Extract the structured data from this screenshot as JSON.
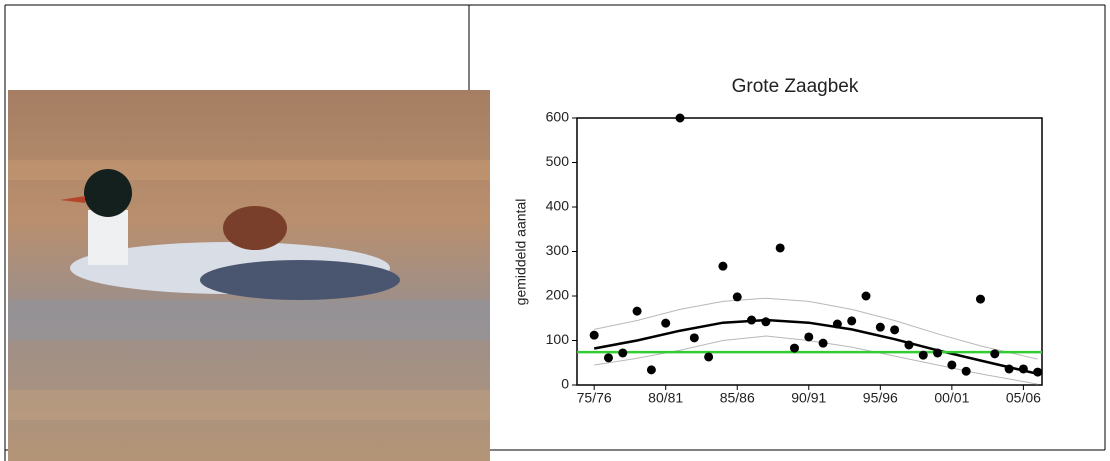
{
  "chart_data": {
    "type": "scatter",
    "title": "Grote Zaagbek",
    "y_label": "gemiddeld aantal",
    "x": [
      1975,
      1976,
      1977,
      1978,
      1979,
      1980,
      1981,
      1982,
      1983,
      1984,
      1985,
      1986,
      1987,
      1988,
      1989,
      1990,
      1991,
      1992,
      1993,
      1994,
      1995,
      1996,
      1997,
      1998,
      1999,
      2000,
      2001,
      2002,
      2003,
      2004,
      2005,
      2006
    ],
    "values": [
      112,
      61,
      72,
      166,
      34,
      139,
      600,
      106,
      63,
      267,
      198,
      146,
      142,
      308,
      83,
      108,
      94,
      137,
      144,
      200,
      130,
      124,
      90,
      67,
      72,
      45,
      31,
      193,
      70,
      36,
      36,
      29
    ],
    "color": "#000000",
    "trend": {
      "x": [
        1975,
        1978,
        1981,
        1984,
        1987,
        1990,
        1993,
        1996,
        1999,
        2002,
        2006
      ],
      "values": [
        82,
        100,
        122,
        140,
        146,
        140,
        125,
        103,
        78,
        55,
        25
      ],
      "color": "#000000",
      "upper": [
        125,
        145,
        170,
        188,
        195,
        188,
        170,
        145,
        115,
        88,
        58
      ],
      "lower": [
        45,
        60,
        78,
        100,
        110,
        100,
        85,
        65,
        45,
        25,
        2
      ],
      "band_color": "#b8b8b8"
    },
    "reference": {
      "value": 74,
      "color": "#33cc33"
    },
    "xlim": [
      1973.8,
      2006.3
    ],
    "ylim": [
      0,
      600
    ],
    "xticks": [
      {
        "value": 1975,
        "label": "75/76"
      },
      {
        "value": 1980,
        "label": "80/81"
      },
      {
        "value": 1985,
        "label": "85/86"
      },
      {
        "value": 1990,
        "label": "90/91"
      },
      {
        "value": 1995,
        "label": "95/96"
      },
      {
        "value": 2000,
        "label": "00/01"
      },
      {
        "value": 2005,
        "label": "05/06"
      }
    ],
    "yticks": [
      0,
      100,
      200,
      300,
      400,
      500,
      600
    ]
  }
}
